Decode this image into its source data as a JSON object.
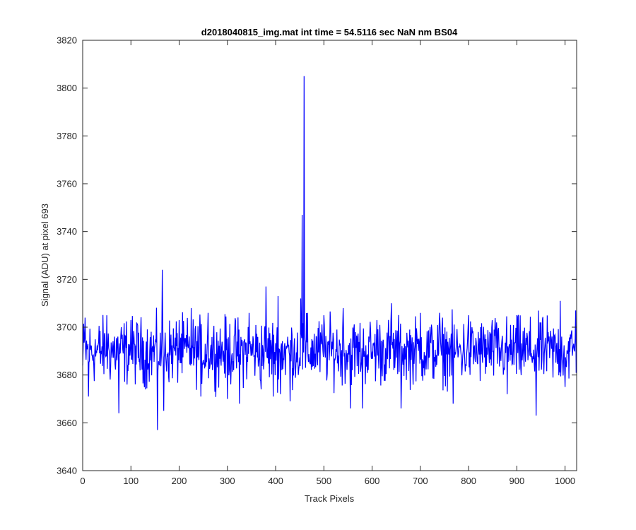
{
  "chart_data": {
    "type": "line",
    "title": "d2018040815_img.mat int time = 54.5116 sec  NaN nm BS04",
    "xlabel": "Track Pixels",
    "ylabel": "Signal (ADU) at pixel 693",
    "xlim": [
      0,
      1024
    ],
    "ylim": [
      3640,
      3820
    ],
    "xticks": [
      0,
      100,
      200,
      300,
      400,
      500,
      600,
      700,
      800,
      900,
      1000
    ],
    "yticks": [
      3640,
      3660,
      3680,
      3700,
      3720,
      3740,
      3760,
      3780,
      3800,
      3820
    ],
    "grid": false,
    "line_color": "#0000ff",
    "series": [
      {
        "baseline": 3690,
        "noise_amplitude": 9,
        "n_points": 1024,
        "points": [
          [
            0,
            3684
          ],
          [
            5,
            3704
          ],
          [
            12,
            3671
          ],
          [
            50,
            3705
          ],
          [
            75,
            3664
          ],
          [
            100,
            3703
          ],
          [
            130,
            3674
          ],
          [
            155,
            3657
          ],
          [
            160,
            3690
          ],
          [
            165,
            3724
          ],
          [
            168,
            3665
          ],
          [
            200,
            3703
          ],
          [
            225,
            3708
          ],
          [
            245,
            3671
          ],
          [
            260,
            3706
          ],
          [
            300,
            3670
          ],
          [
            325,
            3668
          ],
          [
            345,
            3706
          ],
          [
            370,
            3674
          ],
          [
            380,
            3717
          ],
          [
            395,
            3671
          ],
          [
            405,
            3713
          ],
          [
            410,
            3672
          ],
          [
            430,
            3669
          ],
          [
            452,
            3712
          ],
          [
            455,
            3747
          ],
          [
            459,
            3805
          ],
          [
            462,
            3683
          ],
          [
            466,
            3706
          ],
          [
            470,
            3686
          ],
          [
            500,
            3705
          ],
          [
            540,
            3708
          ],
          [
            555,
            3666
          ],
          [
            580,
            3666
          ],
          [
            610,
            3703
          ],
          [
            640,
            3710
          ],
          [
            660,
            3666
          ],
          [
            700,
            3706
          ],
          [
            740,
            3706
          ],
          [
            768,
            3668
          ],
          [
            800,
            3705
          ],
          [
            858,
            3702
          ],
          [
            880,
            3672
          ],
          [
            900,
            3705
          ],
          [
            940,
            3663
          ],
          [
            950,
            3702
          ],
          [
            990,
            3711
          ],
          [
            1000,
            3675
          ],
          [
            1022,
            3707
          ]
        ]
      }
    ]
  }
}
